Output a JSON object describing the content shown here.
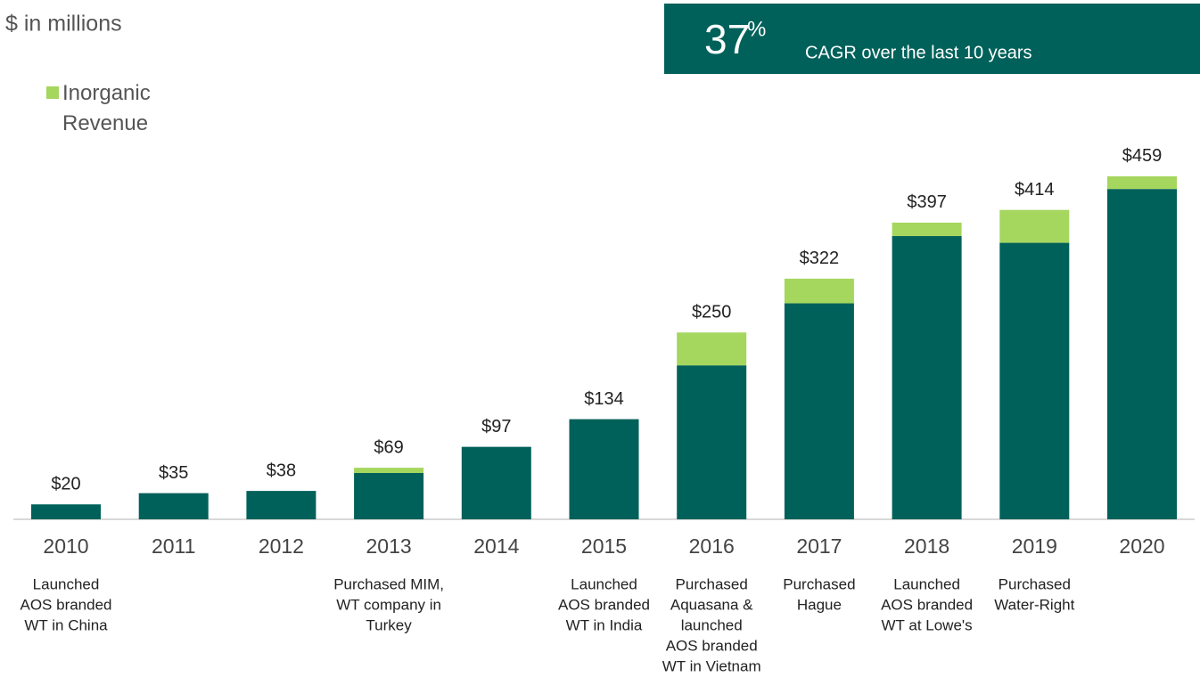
{
  "header": {
    "unit_note": "$ in millions",
    "callout": {
      "value": 37,
      "unit": "%",
      "text": "CAGR over the last 10 years"
    }
  },
  "chart_data": {
    "type": "stacked_bar",
    "categories": [
      "2010",
      "2011",
      "2012",
      "2013",
      "2014",
      "2015",
      "2016",
      "2017",
      "2018",
      "2019",
      "2020"
    ],
    "series": [
      {
        "color": "#00615a",
        "values": [
          20,
          35,
          38,
          62,
          97,
          134,
          206,
          289,
          379,
          370,
          442
        ]
      },
      {
        "name": "Inorganic Revenue",
        "color": "#a5d65e",
        "values": [
          0,
          0,
          0,
          7,
          0,
          0,
          44,
          33,
          18,
          44,
          17
        ]
      }
    ],
    "totals": {
      "values": [
        20,
        35,
        38,
        69,
        97,
        134,
        250,
        322,
        397,
        414,
        459
      ],
      "value_labels": [
        "$20",
        "$35",
        "$38",
        "$69",
        "$97",
        "$134",
        "$250",
        "$322",
        "$397",
        "$414",
        "$459"
      ]
    },
    "notes": [
      [
        "Launched",
        "AOS branded",
        "WT in China"
      ],
      null,
      null,
      [
        "Purchased MIM,",
        "WT company in",
        "Turkey"
      ],
      null,
      [
        "Launched",
        "AOS branded",
        "WT in India"
      ],
      [
        "Purchased",
        "Aquasana &",
        "launched",
        "AOS branded",
        "WT in Vietnam"
      ],
      [
        "Purchased",
        "Hague"
      ],
      [
        "Launched",
        "AOS branded",
        "WT at Lowe's"
      ],
      [
        "Purchased",
        "Water-Right"
      ],
      null
    ],
    "ylim": [
      0,
      500
    ]
  }
}
